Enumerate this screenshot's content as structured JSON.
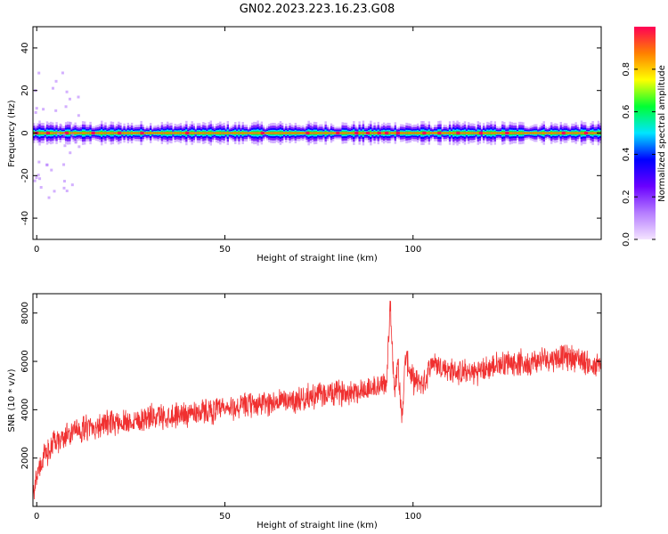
{
  "title": "GN02.2023.223.16.23.G08",
  "colors": {
    "snr_line": "#f03030",
    "colormap": [
      "#f4e4ff",
      "#b57cff",
      "#6a00ff",
      "#0000ff",
      "#00e5ff",
      "#00ff33",
      "#ffff00",
      "#ff8000",
      "#ff0055"
    ]
  },
  "chart_data": [
    {
      "type": "heatmap",
      "xlabel": "Height of straight line (km)",
      "ylabel": "Frequency (Hz)",
      "xlim": [
        -1,
        150
      ],
      "ylim": [
        -50,
        50
      ],
      "x_ticks": [
        0,
        50,
        100
      ],
      "y_ticks": [
        -40,
        -20,
        0,
        20,
        40
      ],
      "colorbar": {
        "label": "Normalized spectral amplitude",
        "range": [
          0,
          1
        ],
        "ticks": [
          "0.0",
          "0.2",
          "0.4",
          "0.6",
          "0.8"
        ]
      },
      "dominant_frequency_hz": 0,
      "peak_amplitude_heights_km": [
        0,
        3,
        8,
        15,
        22,
        28,
        40,
        60,
        72,
        80,
        85,
        88,
        91,
        93,
        96,
        103,
        107,
        112,
        118,
        125,
        140,
        146
      ]
    },
    {
      "type": "line",
      "xlabel": "Height of straight line (km)",
      "ylabel": "SNR (10 * v/v)",
      "xlim": [
        -1,
        150
      ],
      "ylim": [
        0,
        8800
      ],
      "x_ticks": [
        0,
        50,
        100
      ],
      "y_ticks": [
        2000,
        4000,
        6000,
        8000
      ],
      "series": [
        {
          "color": "#f03030",
          "x": [
            -1,
            0,
            1,
            2,
            4,
            6,
            8,
            10,
            15,
            20,
            25,
            30,
            35,
            40,
            45,
            50,
            55,
            60,
            65,
            70,
            75,
            80,
            85,
            90,
            93,
            94,
            95,
            96,
            97,
            98,
            100,
            103,
            105,
            107,
            110,
            115,
            120,
            125,
            130,
            135,
            140,
            145,
            148,
            150
          ],
          "y": [
            700,
            1200,
            1700,
            2100,
            2500,
            2700,
            2950,
            3100,
            3300,
            3450,
            3550,
            3700,
            3750,
            3850,
            3950,
            4000,
            4150,
            4250,
            4350,
            4450,
            4600,
            4700,
            4800,
            4900,
            5100,
            8500,
            4800,
            6000,
            3500,
            6200,
            5200,
            5100,
            6000,
            5800,
            5600,
            5500,
            5700,
            6000,
            5900,
            6100,
            6200,
            6100,
            5700,
            5900
          ],
          "noise_amplitude": 900
        }
      ]
    }
  ]
}
